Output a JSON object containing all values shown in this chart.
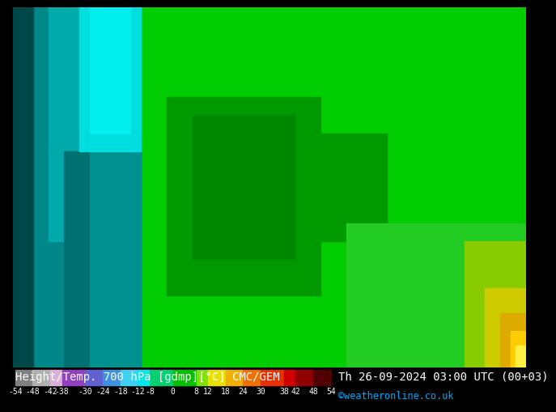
{
  "title_left": "Height/Temp. 700 hPa [gdmp][°C] CMC/GEM",
  "title_right": "Th 26-09-2024 03:00 UTC (00+03)",
  "credit": "©weatheronline.co.uk",
  "colorbar_ticks": [
    -54,
    -48,
    -42,
    -38,
    -30,
    -24,
    -18,
    -12,
    -8,
    0,
    8,
    12,
    18,
    24,
    30,
    38,
    42,
    48,
    54
  ],
  "colorbar_colors": [
    "#808080",
    "#b0b0b0",
    "#d8b0d8",
    "#9040c0",
    "#6060d0",
    "#4090e0",
    "#40d0f0",
    "#00e8e8",
    "#00d070",
    "#00c000",
    "#80e000",
    "#e8e000",
    "#f0b000",
    "#f07000",
    "#e83000",
    "#d00000",
    "#900000",
    "#500000"
  ],
  "bg_color": "#000000",
  "text_color": "#ffffff",
  "title_font_size": 10.0,
  "credit_color": "#00aaff",
  "label_font_size": 7.0
}
